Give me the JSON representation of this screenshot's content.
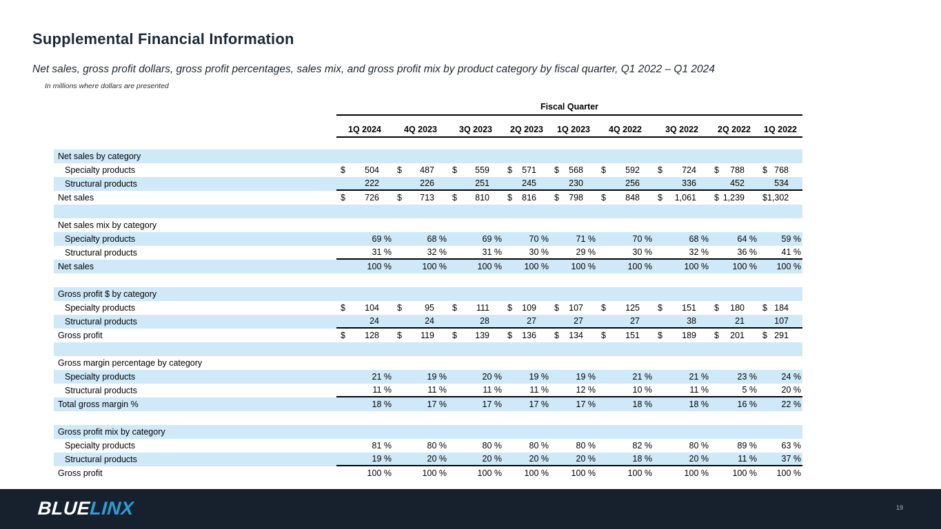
{
  "slide": {
    "title": "Supplemental Financial Information",
    "subtitle": "Net sales, gross profit dollars, gross profit percentages, sales mix, and gross profit mix by product category by fiscal quarter, Q1 2022 – Q1 2024",
    "note": "In millions where dollars are presented",
    "page_number": "19"
  },
  "colors": {
    "row_band_blue": "#cfe9f8",
    "footer_navy": "#16212d",
    "brand_blue": "#2e9ed9",
    "title_navy": "#1b2936"
  },
  "footer": {
    "logo_part1": "BLUE",
    "logo_part2": "LINX"
  },
  "table": {
    "group_header": "Fiscal Quarter",
    "columns": [
      "1Q 2024",
      "4Q 2023",
      "3Q 2023",
      "2Q 2023",
      "1Q 2023",
      "4Q 2022",
      "3Q 2022",
      "2Q 2022",
      "1Q 2022"
    ],
    "sections": [
      {
        "header": "Net sales by category",
        "rows": [
          {
            "label": "Specialty products",
            "indent": true,
            "currency": "$",
            "values": [
              "504",
              "487",
              "559",
              "571",
              "568",
              "592",
              "724",
              "788",
              "768"
            ]
          },
          {
            "label": "Structural products",
            "indent": true,
            "underline": true,
            "values": [
              "222",
              "226",
              "251",
              "245",
              "230",
              "256",
              "336",
              "452",
              "534"
            ]
          },
          {
            "label": "Net sales",
            "indent": false,
            "currency": "$",
            "values": [
              "726",
              "713",
              "810",
              "816",
              "798",
              "848",
              "1,061",
              "1,239",
              "1,302"
            ]
          }
        ]
      },
      {
        "header": "Net sales mix by category",
        "rows": [
          {
            "label": "Specialty products",
            "indent": true,
            "values": [
              "69 %",
              "68 %",
              "69 %",
              "70 %",
              "71 %",
              "70 %",
              "68 %",
              "64 %",
              "59 %"
            ]
          },
          {
            "label": "Structural products",
            "indent": true,
            "underline": true,
            "values": [
              "31 %",
              "32 %",
              "31 %",
              "30 %",
              "29 %",
              "30 %",
              "32 %",
              "36 %",
              "41 %"
            ]
          },
          {
            "label": "Net sales",
            "indent": false,
            "values": [
              "100 %",
              "100 %",
              "100 %",
              "100 %",
              "100 %",
              "100 %",
              "100 %",
              "100 %",
              "100 %"
            ]
          }
        ]
      },
      {
        "header": "Gross profit $ by category",
        "rows": [
          {
            "label": "Specialty products",
            "indent": true,
            "currency": "$",
            "values": [
              "104",
              "95",
              "111",
              "109",
              "107",
              "125",
              "151",
              "180",
              "184"
            ]
          },
          {
            "label": "Structural products",
            "indent": true,
            "underline": true,
            "values": [
              "24",
              "24",
              "28",
              "27",
              "27",
              "27",
              "38",
              "21",
              "107"
            ]
          },
          {
            "label": "Gross profit",
            "indent": false,
            "currency": "$",
            "values": [
              "128",
              "119",
              "139",
              "136",
              "134",
              "151",
              "189",
              "201",
              "291"
            ]
          }
        ]
      },
      {
        "header": "Gross margin percentage by category",
        "rows": [
          {
            "label": "Specialty products",
            "indent": true,
            "values": [
              "21 %",
              "19 %",
              "20 %",
              "19 %",
              "19 %",
              "21 %",
              "21 %",
              "23 %",
              "24 %"
            ]
          },
          {
            "label": "Structural products",
            "indent": true,
            "underline": true,
            "values": [
              "11 %",
              "11 %",
              "11 %",
              "11 %",
              "12 %",
              "10 %",
              "11 %",
              "5 %",
              "20 %"
            ]
          },
          {
            "label": "Total gross margin %",
            "indent": false,
            "values": [
              "18 %",
              "17 %",
              "17 %",
              "17 %",
              "17 %",
              "18 %",
              "18 %",
              "16 %",
              "22 %"
            ]
          }
        ]
      },
      {
        "header": "Gross profit mix by category",
        "rows": [
          {
            "label": "Specialty products",
            "indent": true,
            "values": [
              "81 %",
              "80 %",
              "80 %",
              "80 %",
              "80 %",
              "82 %",
              "80 %",
              "89 %",
              "63 %"
            ]
          },
          {
            "label": "Structural products",
            "indent": true,
            "underline": true,
            "values": [
              "19 %",
              "20 %",
              "20 %",
              "20 %",
              "20 %",
              "18 %",
              "20 %",
              "11 %",
              "37 %"
            ]
          },
          {
            "label": "Gross profit",
            "indent": false,
            "values": [
              "100 %",
              "100 %",
              "100 %",
              "100 %",
              "100 %",
              "100 %",
              "100 %",
              "100 %",
              "100 %"
            ]
          }
        ]
      }
    ]
  }
}
